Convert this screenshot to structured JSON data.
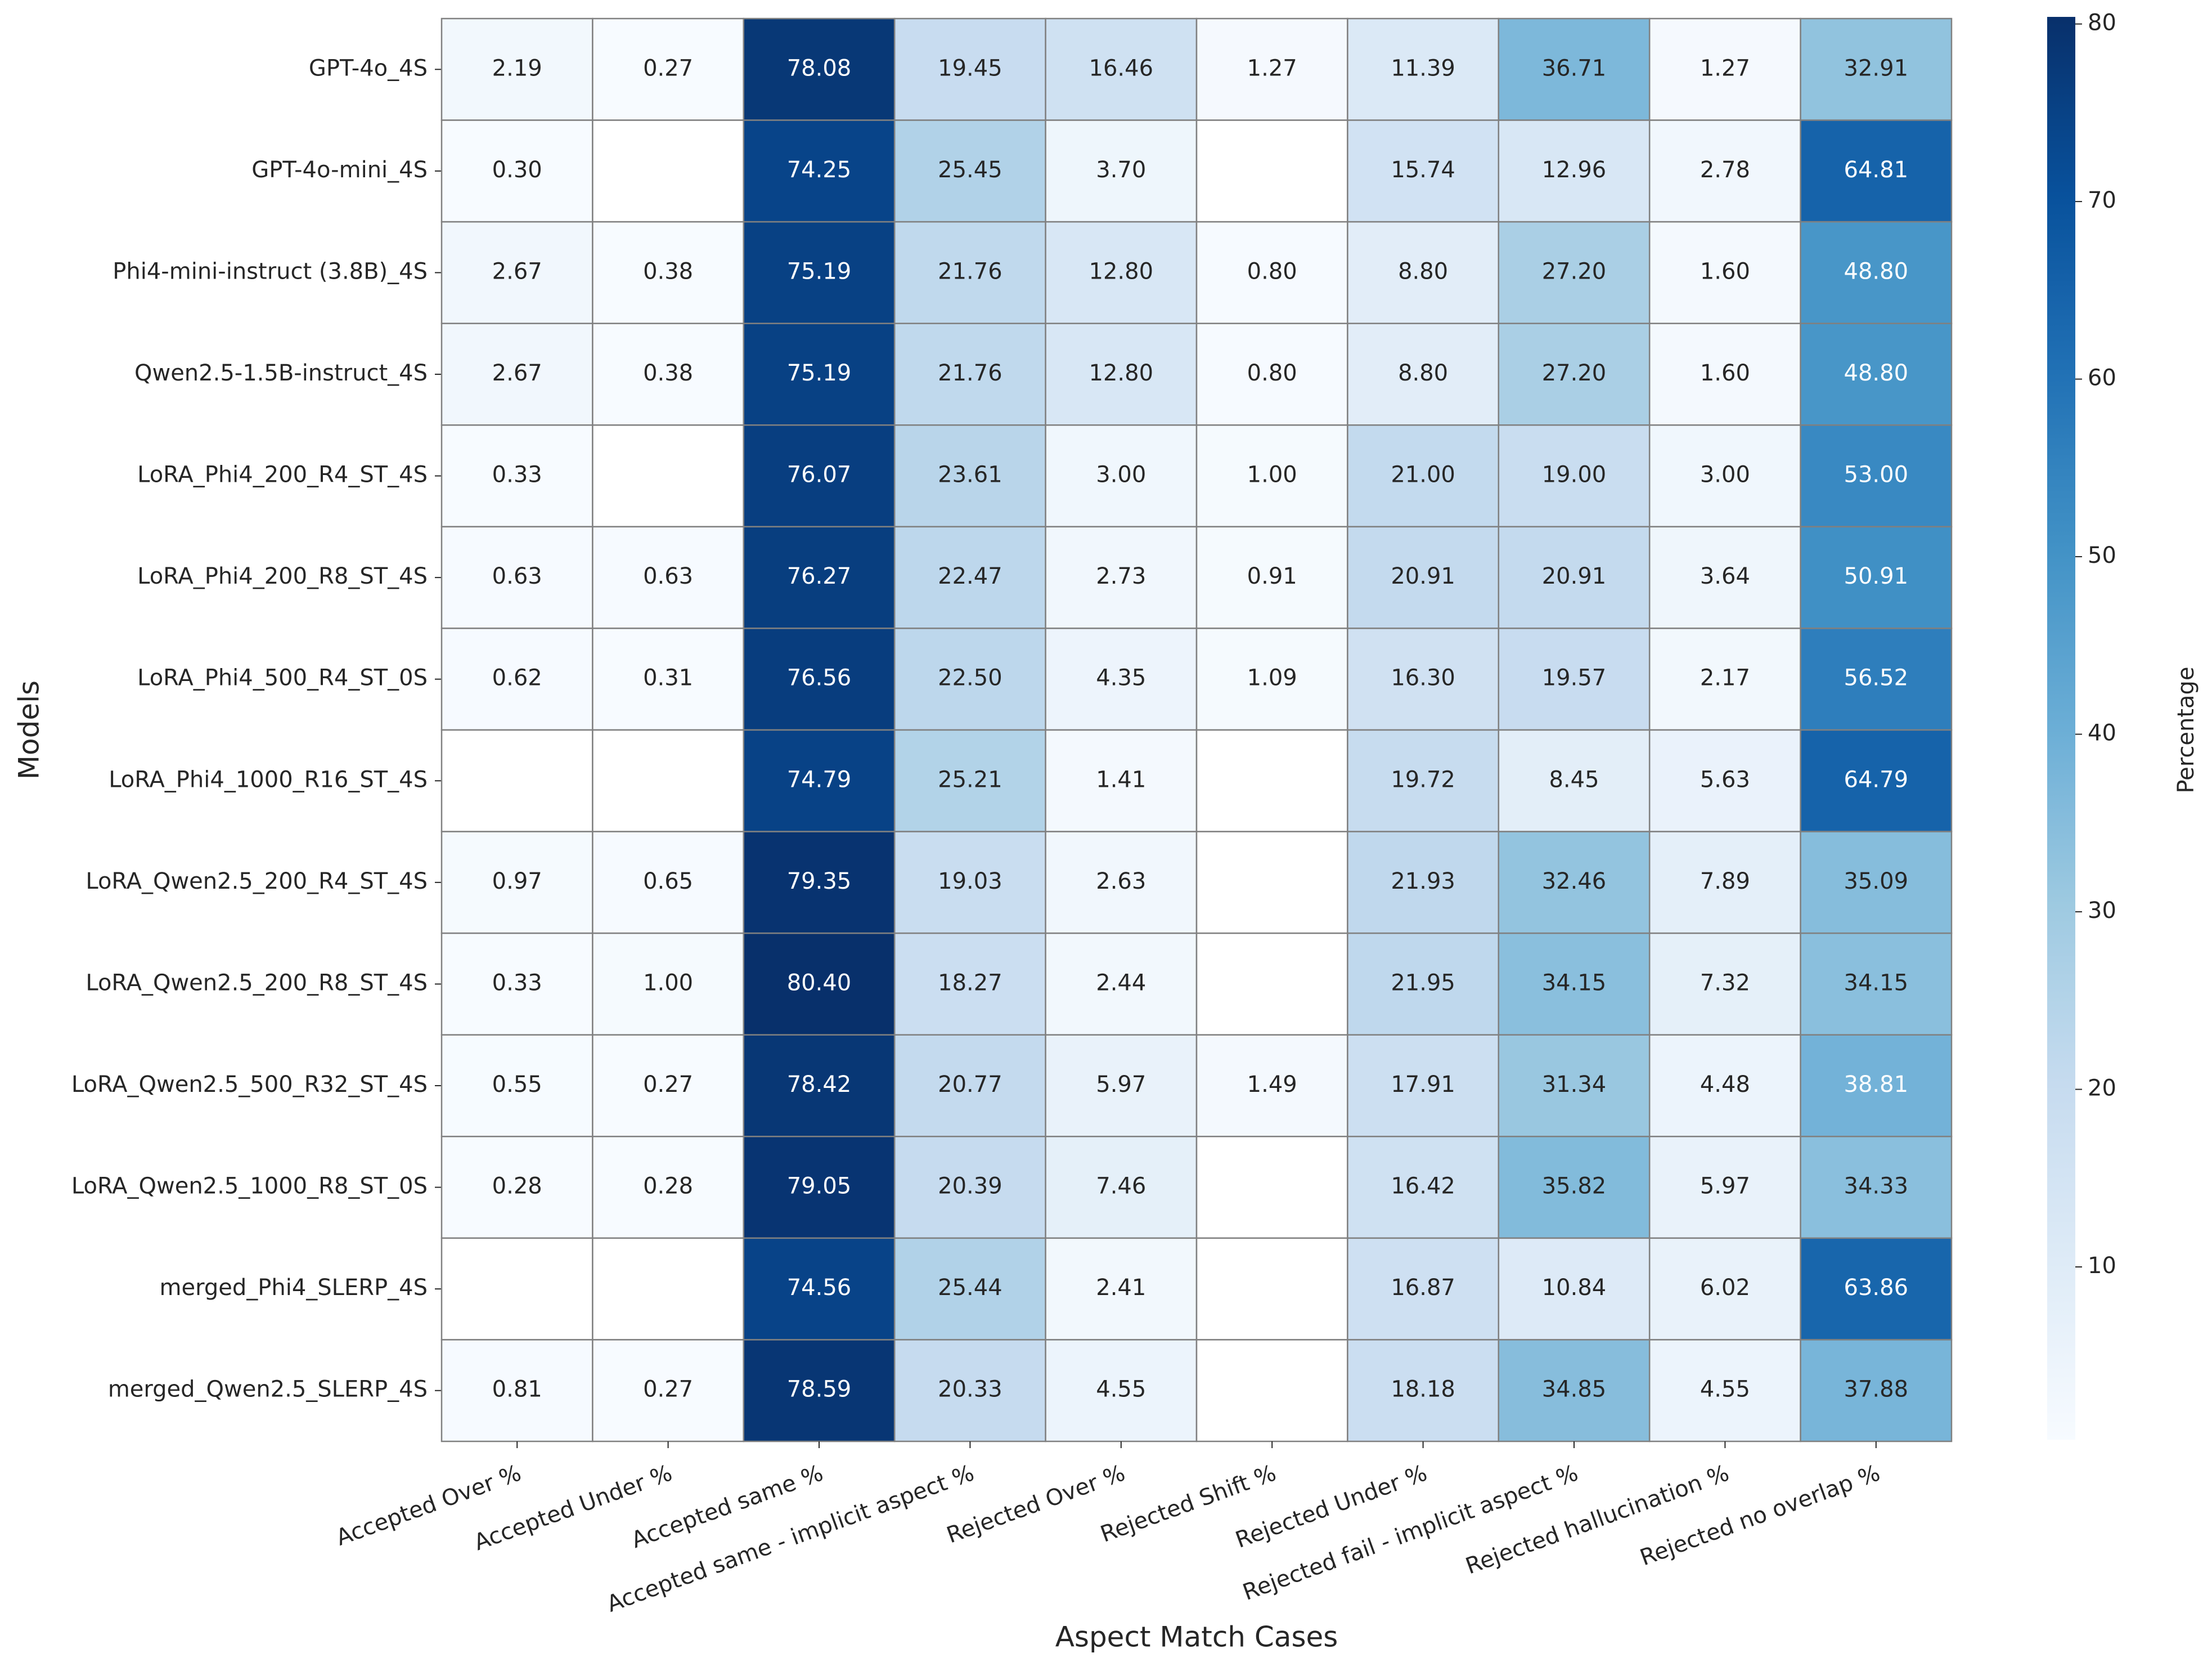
{
  "chart_data": {
    "type": "heatmap",
    "xlabel": "Aspect Match Cases",
    "ylabel": "Models",
    "colorbar_label": "Percentage",
    "colormap": "Blues",
    "clim": [
      0.27,
      80.4
    ],
    "cticks": [
      10,
      20,
      30,
      40,
      50,
      60,
      70,
      80
    ],
    "columns": [
      "Accepted Over %",
      "Accepted Under %",
      "Accepted same %",
      "Accepted same - implicit aspect %",
      "Rejected Over %",
      "Rejected Shift %",
      "Rejected Under %",
      "Rejected fail - implicit aspect %",
      "Rejected hallucination %",
      "Rejected no overlap %"
    ],
    "rows": [
      "GPT-4o_4S",
      "GPT-4o-mini_4S",
      "Phi4-mini-instruct (3.8B)_4S",
      "Qwen2.5-1.5B-instruct_4S",
      "LoRA_Phi4_200_R4_ST_4S",
      "LoRA_Phi4_200_R8_ST_4S",
      "LoRA_Phi4_500_R4_ST_0S",
      "LoRA_Phi4_1000_R16_ST_4S",
      "LoRA_Qwen2.5_200_R4_ST_4S",
      "LoRA_Qwen2.5_200_R8_ST_4S",
      "LoRA_Qwen2.5_500_R32_ST_4S",
      "LoRA_Qwen2.5_1000_R8_ST_0S",
      "merged_Phi4_SLERP_4S",
      "merged_Qwen2.5_SLERP_4S"
    ],
    "values": [
      [
        2.19,
        0.27,
        78.08,
        19.45,
        16.46,
        1.27,
        11.39,
        36.71,
        1.27,
        32.91
      ],
      [
        0.3,
        null,
        74.25,
        25.45,
        3.7,
        null,
        15.74,
        12.96,
        2.78,
        64.81
      ],
      [
        2.67,
        0.38,
        75.19,
        21.76,
        12.8,
        0.8,
        8.8,
        27.2,
        1.6,
        48.8
      ],
      [
        2.67,
        0.38,
        75.19,
        21.76,
        12.8,
        0.8,
        8.8,
        27.2,
        1.6,
        48.8
      ],
      [
        0.33,
        null,
        76.07,
        23.61,
        3.0,
        1.0,
        21.0,
        19.0,
        3.0,
        53.0
      ],
      [
        0.63,
        0.63,
        76.27,
        22.47,
        2.73,
        0.91,
        20.91,
        20.91,
        3.64,
        50.91
      ],
      [
        0.62,
        0.31,
        76.56,
        22.5,
        4.35,
        1.09,
        16.3,
        19.57,
        2.17,
        56.52
      ],
      [
        null,
        null,
        74.79,
        25.21,
        1.41,
        null,
        19.72,
        8.45,
        5.63,
        64.79
      ],
      [
        0.97,
        0.65,
        79.35,
        19.03,
        2.63,
        null,
        21.93,
        32.46,
        7.89,
        35.09
      ],
      [
        0.33,
        1.0,
        80.4,
        18.27,
        2.44,
        null,
        21.95,
        34.15,
        7.32,
        34.15
      ],
      [
        0.55,
        0.27,
        78.42,
        20.77,
        5.97,
        1.49,
        17.91,
        31.34,
        4.48,
        38.81
      ],
      [
        0.28,
        0.28,
        79.05,
        20.39,
        7.46,
        null,
        16.42,
        35.82,
        5.97,
        34.33
      ],
      [
        null,
        null,
        74.56,
        25.44,
        2.41,
        null,
        16.87,
        10.84,
        6.02,
        63.86
      ],
      [
        0.81,
        0.27,
        78.59,
        20.33,
        4.55,
        null,
        18.18,
        34.85,
        4.55,
        37.88
      ]
    ],
    "value_labels": [
      [
        "2.19",
        "0.27",
        "78.08",
        "19.45",
        "16.46",
        "1.27",
        "11.39",
        "36.71",
        "1.27",
        "32.91"
      ],
      [
        "0.30",
        null,
        "74.25",
        "25.45",
        "3.70",
        null,
        "15.74",
        "12.96",
        "2.78",
        "64.81"
      ],
      [
        "2.67",
        "0.38",
        "75.19",
        "21.76",
        "12.80",
        "0.80",
        "8.80",
        "27.20",
        "1.60",
        "48.80"
      ],
      [
        "2.67",
        "0.38",
        "75.19",
        "21.76",
        "12.80",
        "0.80",
        "8.80",
        "27.20",
        "1.60",
        "48.80"
      ],
      [
        "0.33",
        null,
        "76.07",
        "23.61",
        "3.00",
        "1.00",
        "21.00",
        "19.00",
        "3.00",
        "53.00"
      ],
      [
        "0.63",
        "0.63",
        "76.27",
        "22.47",
        "2.73",
        "0.91",
        "20.91",
        "20.91",
        "3.64",
        "50.91"
      ],
      [
        "0.62",
        "0.31",
        "76.56",
        "22.50",
        "4.35",
        "1.09",
        "16.30",
        "19.57",
        "2.17",
        "56.52"
      ],
      [
        null,
        null,
        "74.79",
        "25.21",
        "1.41",
        null,
        "19.72",
        "8.45",
        "5.63",
        "64.79"
      ],
      [
        "0.97",
        "0.65",
        "79.35",
        "19.03",
        "2.63",
        null,
        "21.93",
        "32.46",
        "7.89",
        "35.09"
      ],
      [
        "0.33",
        "1.00",
        "80.40",
        "18.27",
        "2.44",
        null,
        "21.95",
        "34.15",
        "7.32",
        "34.15"
      ],
      [
        "0.55",
        "0.27",
        "78.42",
        "20.77",
        "5.97",
        "1.49",
        "17.91",
        "31.34",
        "4.48",
        "38.81"
      ],
      [
        "0.28",
        "0.28",
        "79.05",
        "20.39",
        "7.46",
        null,
        "16.42",
        "35.82",
        "5.97",
        "34.33"
      ],
      [
        null,
        null,
        "74.56",
        "25.44",
        "2.41",
        null,
        "16.87",
        "10.84",
        "6.02",
        "63.86"
      ],
      [
        "0.81",
        "0.27",
        "78.59",
        "20.33",
        "4.55",
        null,
        "18.18",
        "34.85",
        "4.55",
        "37.88"
      ]
    ]
  }
}
